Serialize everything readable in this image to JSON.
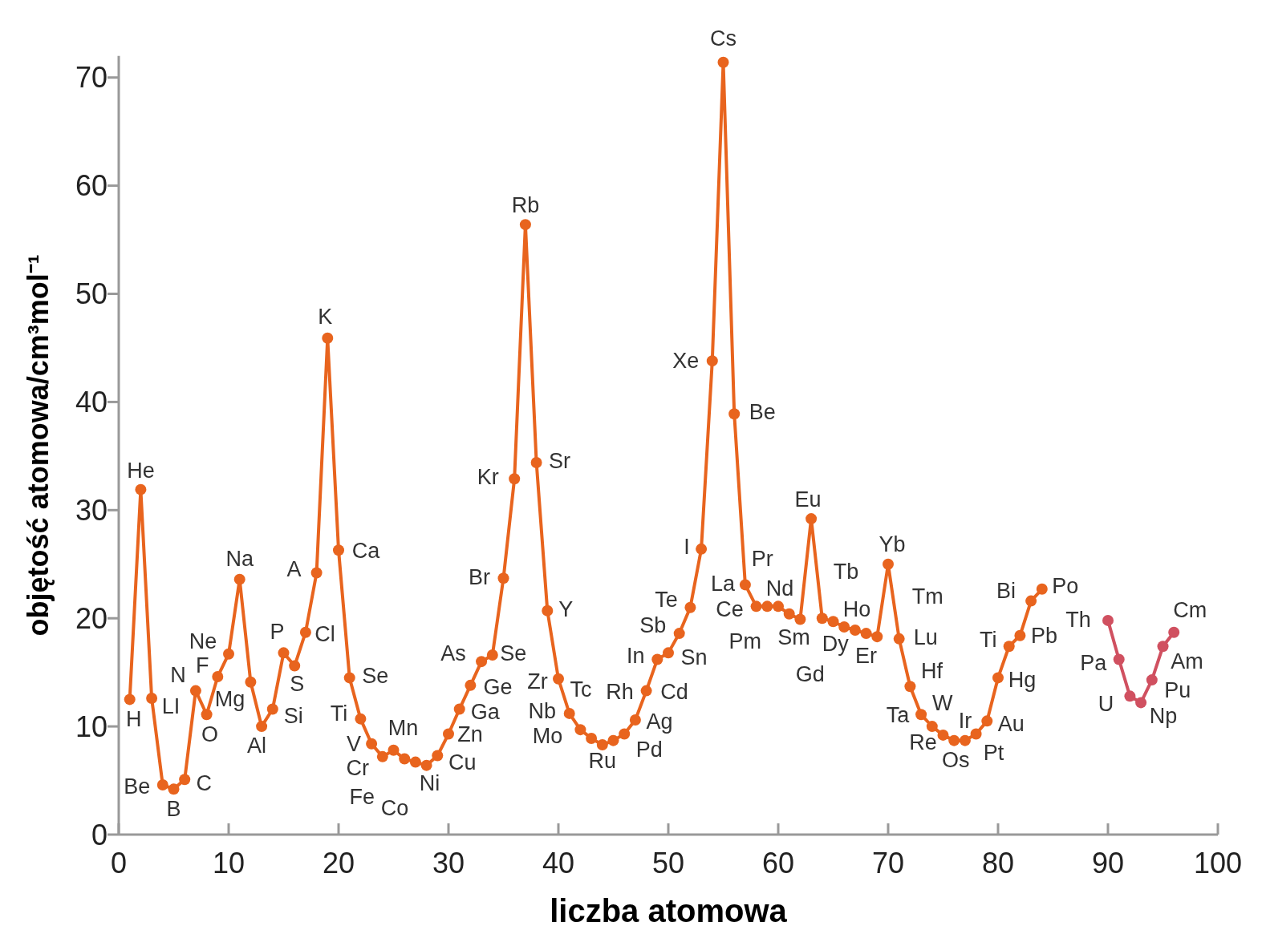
{
  "chart_data": {
    "type": "line",
    "xlabel": "liczba atomowa",
    "ylabel": "objętość atomowa/cm³mol⁻¹",
    "xlim": [
      0,
      100
    ],
    "ylim": [
      0,
      72
    ],
    "xticks": [
      0,
      10,
      20,
      30,
      40,
      50,
      60,
      70,
      80,
      90,
      100
    ],
    "yticks": [
      0,
      10,
      20,
      30,
      40,
      50,
      60,
      70
    ],
    "grid": false,
    "marker": "circle",
    "line_style": "solid",
    "series": [
      {
        "color": "#e8641e",
        "x": [
          1,
          2,
          3,
          4,
          5,
          6,
          7,
          8,
          9,
          10,
          11,
          12,
          13,
          14,
          15,
          16,
          17,
          18,
          19,
          20,
          21,
          22,
          23,
          24,
          25,
          26,
          27,
          28,
          29,
          30,
          31,
          32,
          33,
          34,
          35,
          36,
          37,
          38,
          39,
          40,
          41,
          42,
          43,
          44,
          45,
          46,
          47,
          48,
          49,
          50,
          51,
          52,
          53,
          54,
          55,
          56,
          57,
          58,
          59,
          60,
          61,
          62,
          63,
          64,
          65,
          66,
          67,
          68,
          69,
          70,
          71,
          72,
          73,
          74,
          75,
          76,
          77,
          78,
          79,
          80,
          81,
          82,
          83,
          84
        ],
        "values": [
          12.5,
          31.9,
          12.6,
          4.6,
          4.2,
          5.1,
          13.3,
          11.1,
          14.6,
          16.7,
          23.6,
          14.1,
          10.0,
          11.6,
          16.8,
          15.6,
          18.7,
          24.2,
          45.9,
          26.3,
          14.5,
          10.7,
          8.4,
          7.2,
          7.8,
          7.0,
          6.7,
          6.4,
          7.3,
          9.3,
          11.6,
          13.8,
          16.0,
          16.6,
          23.7,
          32.9,
          56.4,
          34.4,
          20.7,
          14.4,
          11.2,
          9.7,
          8.9,
          8.3,
          8.7,
          9.3,
          10.6,
          13.3,
          16.2,
          16.8,
          18.6,
          21.0,
          26.4,
          43.8,
          71.4,
          38.9,
          23.1,
          21.1,
          21.1,
          21.1,
          20.4,
          19.9,
          29.2,
          20.0,
          19.7,
          19.2,
          18.9,
          18.6,
          18.3,
          25.0,
          18.1,
          13.7,
          11.1,
          10.0,
          9.2,
          8.7,
          8.7,
          9.3,
          10.5,
          14.5,
          17.4,
          18.4,
          21.6,
          22.7
        ]
      },
      {
        "color": "#d05060",
        "x": [
          90,
          91,
          92,
          93,
          94,
          95,
          96
        ],
        "values": [
          19.8,
          16.2,
          12.8,
          12.2,
          14.3,
          17.4,
          18.7
        ]
      }
    ],
    "annotations": [
      {
        "text": "H",
        "x": 1,
        "y": 12.5
      },
      {
        "text": "He",
        "x": 2,
        "y": 31.9
      },
      {
        "text": "LI",
        "x": 3,
        "y": 12.6
      },
      {
        "text": "Be",
        "x": 4,
        "y": 4.6
      },
      {
        "text": "B",
        "x": 5,
        "y": 4.2
      },
      {
        "text": "C",
        "x": 6,
        "y": 5.1
      },
      {
        "text": "N",
        "x": 7,
        "y": 13.3
      },
      {
        "text": "O",
        "x": 8,
        "y": 11.1
      },
      {
        "text": "F",
        "x": 9,
        "y": 14.6
      },
      {
        "text": "Ne",
        "x": 10,
        "y": 16.7
      },
      {
        "text": "Na",
        "x": 11,
        "y": 23.6
      },
      {
        "text": "Mg",
        "x": 12,
        "y": 14.1
      },
      {
        "text": "Al",
        "x": 13,
        "y": 10.0
      },
      {
        "text": "Si",
        "x": 14,
        "y": 11.6
      },
      {
        "text": "P",
        "x": 15,
        "y": 16.8
      },
      {
        "text": "S",
        "x": 16,
        "y": 15.6
      },
      {
        "text": "Cl",
        "x": 17,
        "y": 18.7
      },
      {
        "text": "A",
        "x": 18,
        "y": 24.2
      },
      {
        "text": "K",
        "x": 19,
        "y": 45.9
      },
      {
        "text": "Ca",
        "x": 20,
        "y": 26.3
      },
      {
        "text": "Se",
        "x": 21,
        "y": 14.5
      },
      {
        "text": "Ti",
        "x": 22,
        "y": 10.7
      },
      {
        "text": "V",
        "x": 23,
        "y": 8.4
      },
      {
        "text": "Cr",
        "x": 24,
        "y": 7.2
      },
      {
        "text": "Mn",
        "x": 25,
        "y": 7.8
      },
      {
        "text": "Fe",
        "x": 26,
        "y": 7.0
      },
      {
        "text": "Co",
        "x": 27,
        "y": 6.7
      },
      {
        "text": "Ni",
        "x": 28,
        "y": 6.4
      },
      {
        "text": "Cu",
        "x": 29,
        "y": 7.3
      },
      {
        "text": "Zn",
        "x": 30,
        "y": 9.3
      },
      {
        "text": "Ga",
        "x": 31,
        "y": 11.6
      },
      {
        "text": "Ge",
        "x": 32,
        "y": 13.8
      },
      {
        "text": "As",
        "x": 33,
        "y": 16.0
      },
      {
        "text": "Se",
        "x": 34,
        "y": 16.6
      },
      {
        "text": "Br",
        "x": 35,
        "y": 23.7
      },
      {
        "text": "Kr",
        "x": 36,
        "y": 32.9
      },
      {
        "text": "Rb",
        "x": 37,
        "y": 56.4
      },
      {
        "text": "Sr",
        "x": 38,
        "y": 34.4
      },
      {
        "text": "Y",
        "x": 39,
        "y": 20.7
      },
      {
        "text": "Zr",
        "x": 40,
        "y": 14.4
      },
      {
        "text": "Nb",
        "x": 41,
        "y": 11.2
      },
      {
        "text": "Mo",
        "x": 42,
        "y": 9.7
      },
      {
        "text": "Tc",
        "x": 43,
        "y": 8.9
      },
      {
        "text": "Ru",
        "x": 44,
        "y": 8.3
      },
      {
        "text": "Rh",
        "x": 45,
        "y": 8.7
      },
      {
        "text": "Pd",
        "x": 46,
        "y": 9.3
      },
      {
        "text": "Ag",
        "x": 47,
        "y": 10.6
      },
      {
        "text": "Cd",
        "x": 48,
        "y": 13.3
      },
      {
        "text": "In",
        "x": 49,
        "y": 16.2
      },
      {
        "text": "Sn",
        "x": 50,
        "y": 16.8
      },
      {
        "text": "Sb",
        "x": 51,
        "y": 18.6
      },
      {
        "text": "Te",
        "x": 52,
        "y": 21.0
      },
      {
        "text": "I",
        "x": 53,
        "y": 26.4
      },
      {
        "text": "Xe",
        "x": 54,
        "y": 43.8
      },
      {
        "text": "Cs",
        "x": 55,
        "y": 71.4
      },
      {
        "text": "Be",
        "x": 56,
        "y": 38.9
      },
      {
        "text": "La",
        "x": 57,
        "y": 23.1
      },
      {
        "text": "Ce",
        "x": 58,
        "y": 21.1
      },
      {
        "text": "Pr",
        "x": 59,
        "y": 21.1
      },
      {
        "text": "Nd",
        "x": 60,
        "y": 21.1
      },
      {
        "text": "Pm",
        "x": 61,
        "y": 20.4
      },
      {
        "text": "Sm",
        "x": 62,
        "y": 19.9
      },
      {
        "text": "Eu",
        "x": 63,
        "y": 29.2
      },
      {
        "text": "Gd",
        "x": 64,
        "y": 20.0
      },
      {
        "text": "Tb",
        "x": 65,
        "y": 19.7
      },
      {
        "text": "Dy",
        "x": 66,
        "y": 19.2
      },
      {
        "text": "Ho",
        "x": 67,
        "y": 18.9
      },
      {
        "text": "Er",
        "x": 68,
        "y": 18.6
      },
      {
        "text": "Tm",
        "x": 69,
        "y": 18.3
      },
      {
        "text": "Yb",
        "x": 70,
        "y": 25.0
      },
      {
        "text": "Lu",
        "x": 71,
        "y": 18.1
      },
      {
        "text": "Hf",
        "x": 72,
        "y": 13.7
      },
      {
        "text": "Ta",
        "x": 73,
        "y": 11.1
      },
      {
        "text": "W",
        "x": 74,
        "y": 10.0
      },
      {
        "text": "Re",
        "x": 75,
        "y": 9.2
      },
      {
        "text": "Os",
        "x": 76,
        "y": 8.7
      },
      {
        "text": "Ir",
        "x": 77,
        "y": 8.7
      },
      {
        "text": "Pt",
        "x": 78,
        "y": 9.3
      },
      {
        "text": "Au",
        "x": 79,
        "y": 10.5
      },
      {
        "text": "Hg",
        "x": 80,
        "y": 14.5
      },
      {
        "text": "Ti",
        "x": 81,
        "y": 17.4
      },
      {
        "text": "Pb",
        "x": 82,
        "y": 18.4
      },
      {
        "text": "Bi",
        "x": 83,
        "y": 21.6
      },
      {
        "text": "Po",
        "x": 84,
        "y": 22.7
      },
      {
        "text": "Th",
        "x": 90,
        "y": 19.8
      },
      {
        "text": "Pa",
        "x": 91,
        "y": 16.2
      },
      {
        "text": "U",
        "x": 92,
        "y": 12.8
      },
      {
        "text": "Np",
        "x": 93,
        "y": 12.2
      },
      {
        "text": "Pu",
        "x": 94,
        "y": 14.3
      },
      {
        "text": "Am",
        "x": 95,
        "y": 17.4
      },
      {
        "text": "Cm",
        "x": 96,
        "y": 18.7
      }
    ]
  }
}
